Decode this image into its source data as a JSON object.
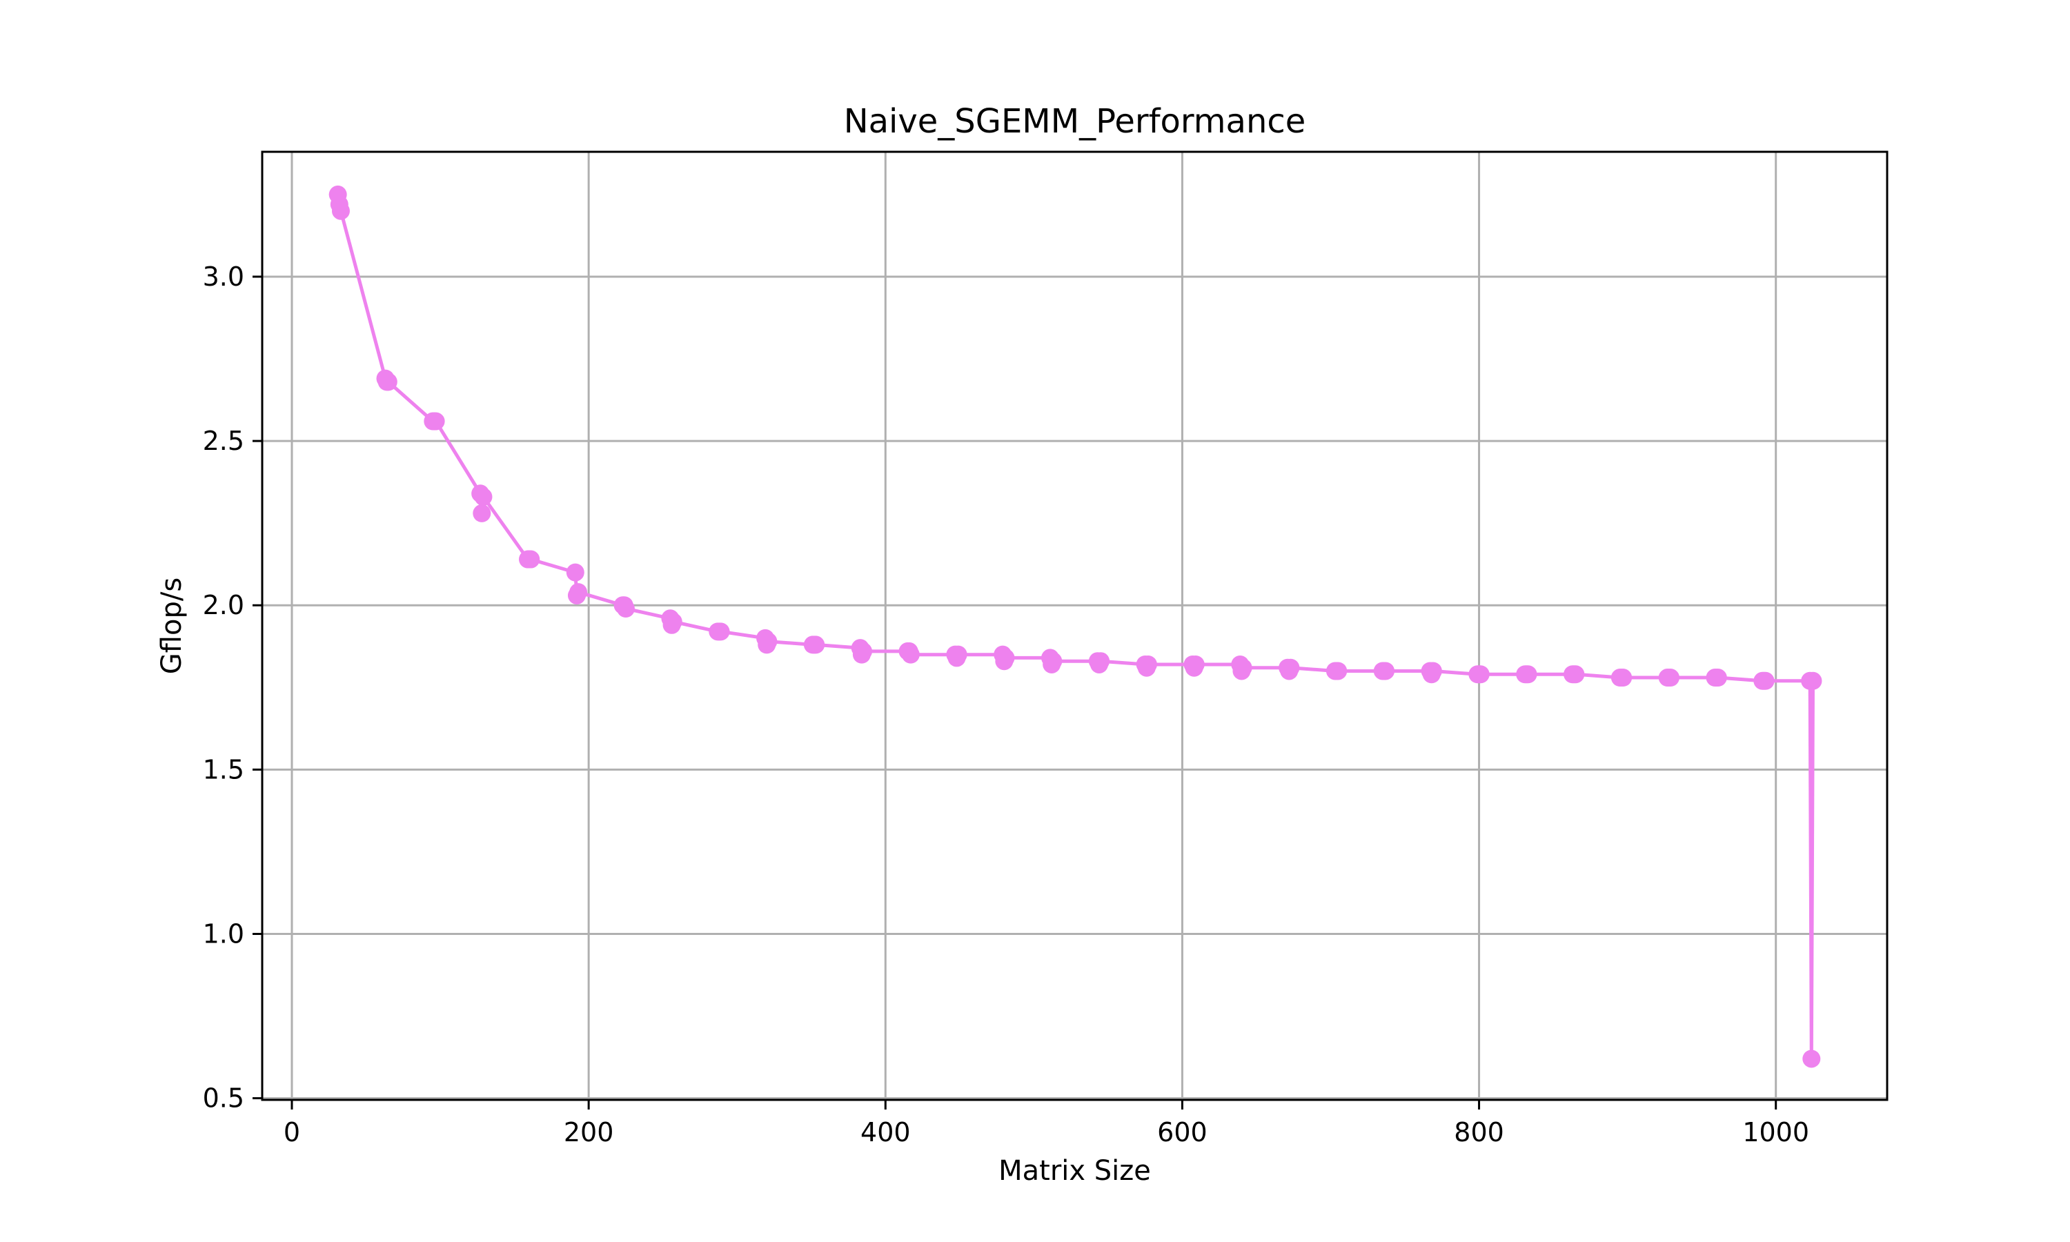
{
  "chart_data": {
    "type": "line",
    "title": "Naive_SGEMM_Performance",
    "xlabel": "Matrix Size",
    "ylabel": "Gflop/s",
    "xlim": [
      -20,
      1075
    ],
    "ylim": [
      0.495,
      3.38
    ],
    "xticks": [
      0,
      200,
      400,
      600,
      800,
      1000
    ],
    "yticks": [
      0.5,
      1.0,
      1.5,
      2.0,
      2.5,
      3.0
    ],
    "xtick_labels": [
      "0",
      "200",
      "400",
      "600",
      "800",
      "1000"
    ],
    "ytick_labels": [
      "0.5",
      "1.0",
      "1.5",
      "2.0",
      "2.5",
      "3.0"
    ],
    "grid": true,
    "color": "#ee82ee",
    "marker": "circle",
    "series": [
      {
        "x": [
          31,
          32,
          33,
          63,
          64,
          65,
          95,
          96,
          97,
          127,
          128,
          129,
          159,
          160,
          161,
          191,
          192,
          193,
          223,
          224,
          225,
          255,
          256,
          257,
          287,
          288,
          289,
          319,
          320,
          321,
          351,
          352,
          353,
          383,
          384,
          385,
          415,
          416,
          417,
          447,
          448,
          449,
          479,
          480,
          481,
          511,
          512,
          513,
          543,
          544,
          545,
          575,
          576,
          577,
          607,
          608,
          609,
          639,
          640,
          641,
          671,
          672,
          673,
          703,
          704,
          705,
          735,
          736,
          737,
          767,
          768,
          769,
          799,
          800,
          801,
          831,
          832,
          833,
          863,
          864,
          865,
          895,
          896,
          897,
          927,
          928,
          929,
          959,
          960,
          961,
          991,
          992,
          993,
          1023,
          1024,
          1025
        ],
        "y": [
          3.25,
          3.22,
          3.2,
          2.69,
          2.68,
          2.68,
          2.56,
          2.56,
          2.56,
          2.34,
          2.28,
          2.33,
          2.14,
          2.14,
          2.14,
          2.1,
          2.03,
          2.04,
          2.0,
          2.0,
          1.99,
          1.96,
          1.94,
          1.95,
          1.92,
          1.92,
          1.92,
          1.9,
          1.88,
          1.89,
          1.88,
          1.88,
          1.88,
          1.87,
          1.85,
          1.86,
          1.86,
          1.86,
          1.85,
          1.85,
          1.84,
          1.85,
          1.85,
          1.83,
          1.84,
          1.84,
          1.82,
          1.83,
          1.83,
          1.82,
          1.83,
          1.82,
          1.81,
          1.82,
          1.82,
          1.81,
          1.82,
          1.82,
          1.8,
          1.81,
          1.81,
          1.8,
          1.81,
          1.8,
          1.8,
          1.8,
          1.8,
          1.8,
          1.8,
          1.8,
          1.79,
          1.8,
          1.79,
          1.79,
          1.79,
          1.79,
          1.79,
          1.79,
          1.79,
          1.79,
          1.79,
          1.78,
          1.78,
          1.78,
          1.78,
          1.78,
          1.78,
          1.78,
          1.78,
          1.78,
          1.77,
          1.77,
          1.77,
          1.77,
          0.62,
          1.77
        ]
      }
    ]
  }
}
